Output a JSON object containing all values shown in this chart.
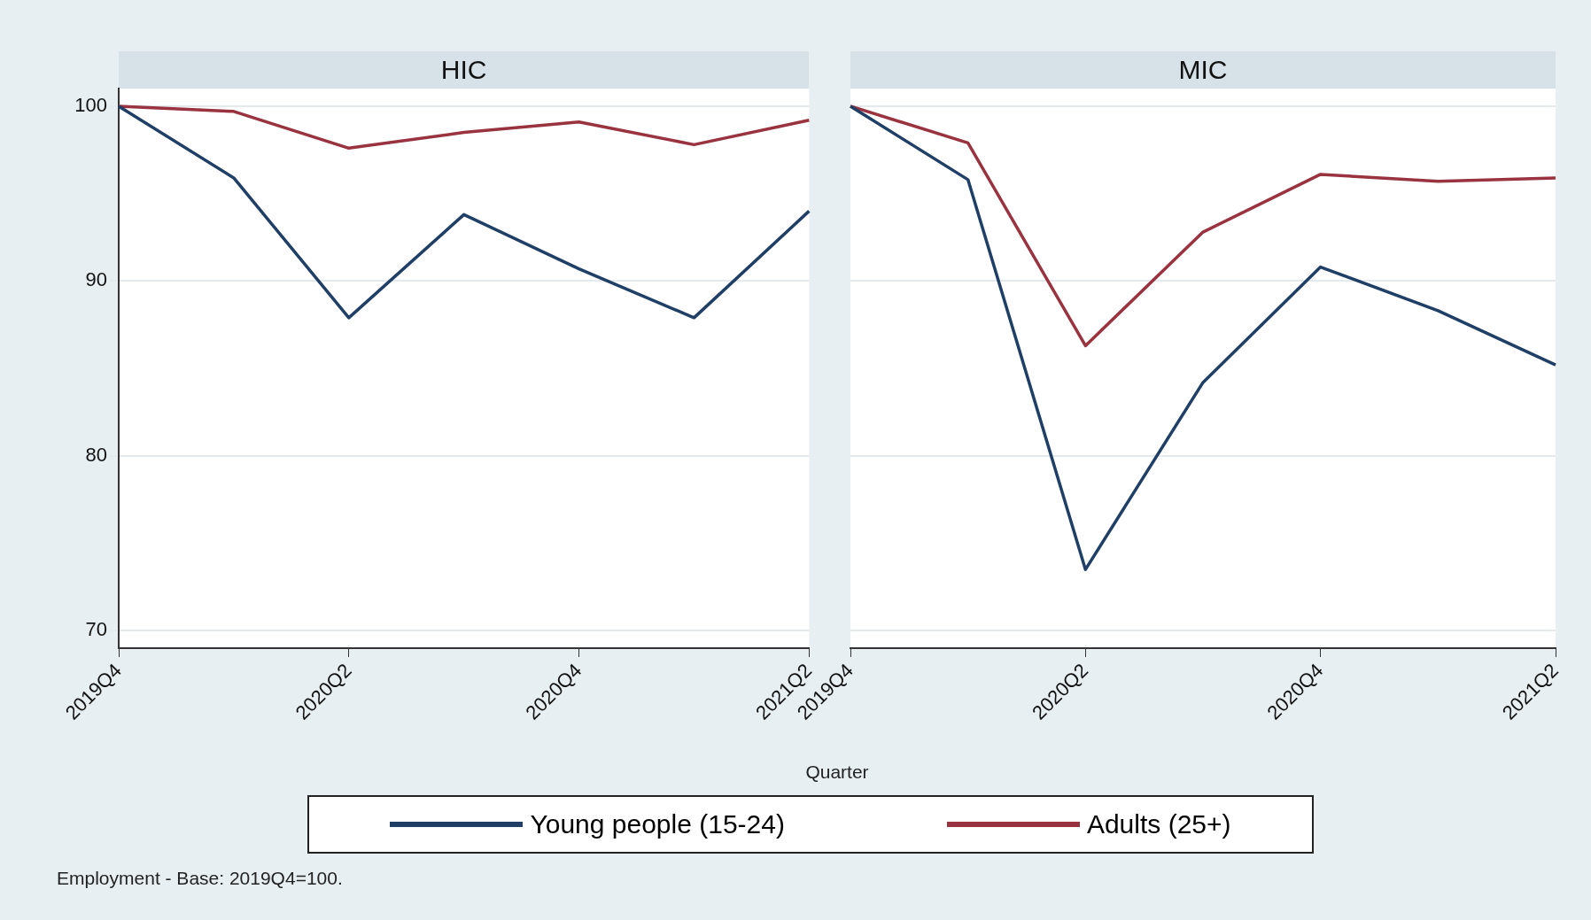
{
  "chart_data": [
    {
      "type": "line",
      "title": "HIC",
      "categories": [
        "2019Q4",
        null,
        "2020Q2",
        null,
        "2020Q4",
        null,
        "2021Q2"
      ],
      "xlabel": "Quarter",
      "ylim": [
        69,
        101
      ],
      "yticks": [
        70,
        80,
        90,
        100
      ],
      "grid": "y",
      "legend": "bottom",
      "annotations": [
        "Employment - Base: 2019Q4=100."
      ],
      "series": [
        {
          "name": "Young people (15-24)",
          "color": "#1f3f66",
          "values": [
            100,
            95.9,
            87.9,
            93.8,
            90.7,
            87.9,
            94.0
          ]
        },
        {
          "name": "Adults (25+)",
          "color": "#99333f",
          "values": [
            100,
            99.7,
            97.6,
            98.5,
            99.1,
            97.8,
            99.2
          ]
        }
      ]
    },
    {
      "type": "line",
      "title": "MIC",
      "categories": [
        "2019Q4",
        null,
        "2020Q2",
        null,
        "2020Q4",
        null,
        "2021Q2"
      ],
      "ylim": [
        69,
        101
      ],
      "yticks": [
        70,
        80,
        90,
        100
      ],
      "grid": "y",
      "tick_labels": "x",
      "series": [
        {
          "color": "#1f3f66",
          "values": [
            100,
            95.8,
            73.5,
            84.2,
            90.8,
            88.3,
            85.2
          ]
        },
        {
          "color": "#99333f",
          "values": [
            100,
            97.9,
            86.3,
            92.8,
            96.1,
            95.7,
            95.9
          ]
        }
      ]
    }
  ]
}
